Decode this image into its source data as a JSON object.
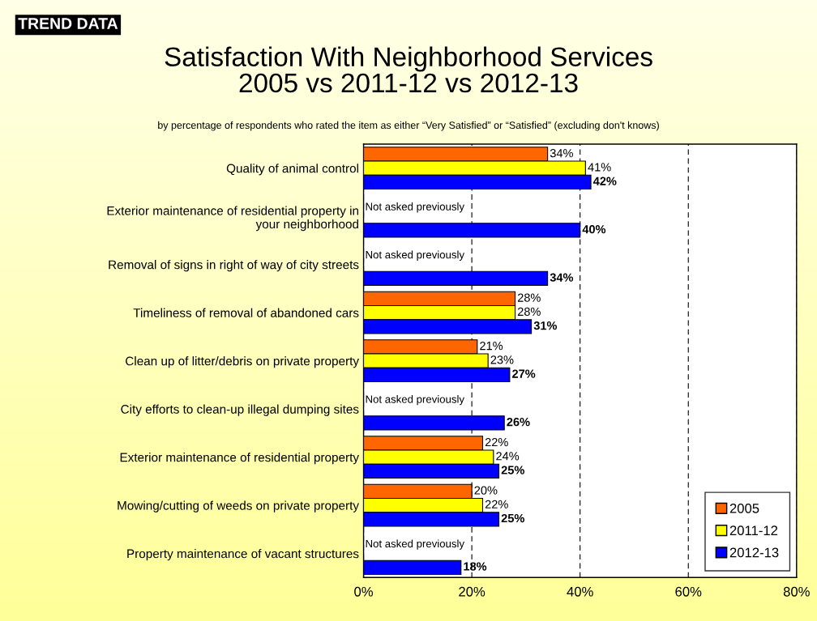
{
  "chart_data": {
    "type": "bar",
    "orientation": "horizontal",
    "title": "Satisfaction With Neighborhood Services\n2005 vs 2011-12 vs 2012-13",
    "subtitle": "by percentage of respondents who rated the item as either “Very Satisfied” or “Satisfied” (excluding don't knows)",
    "categories": [
      "Quality of animal control",
      "Exterior maintenance of residential property in\nyour neighborhood",
      "Removal of signs in right of way of city streets",
      "Timeliness of removal of abandoned cars",
      "Clean up of litter/debris on private property",
      "City efforts to clean-up illegal dumping sites",
      "Exterior maintenance of residential property",
      "Mowing/cutting of weeds on private property",
      "Property maintenance of vacant structures"
    ],
    "series": [
      {
        "name": "2005",
        "color": "#ff6600",
        "values": [
          34,
          null,
          null,
          28,
          21,
          null,
          22,
          20,
          null
        ],
        "value_labels": [
          "34%",
          null,
          null,
          "28%",
          "21%",
          null,
          "22%",
          "20%",
          null
        ]
      },
      {
        "name": "2011-12",
        "color": "#ffff00",
        "values": [
          41,
          null,
          null,
          28,
          23,
          null,
          24,
          22,
          null
        ],
        "value_labels": [
          "41%",
          null,
          null,
          "28%",
          "23%",
          null,
          "24%",
          "22%",
          null
        ]
      },
      {
        "name": "2012-13",
        "color": "#0000ff",
        "values": [
          42,
          40,
          34,
          31,
          27,
          26,
          25,
          25,
          18
        ],
        "value_labels": [
          "42%",
          "40%",
          "34%",
          "31%",
          "27%",
          "26%",
          "25%",
          "25%",
          "18%"
        ]
      }
    ],
    "xlim": [
      0,
      80
    ],
    "xticks": [
      {
        "value": 0,
        "label": "0%"
      },
      {
        "value": 20,
        "label": "20%"
      },
      {
        "value": 40,
        "label": "40%"
      },
      {
        "value": 60,
        "label": "60%"
      },
      {
        "value": 80,
        "label": "80%"
      }
    ],
    "grid": "x",
    "line_style": "dashed",
    "legend": "bottom right",
    "annotations": [
      "TREND DATA",
      "Not asked previously",
      "Not asked previously",
      "Not asked previously",
      "Not asked previously"
    ]
  }
}
